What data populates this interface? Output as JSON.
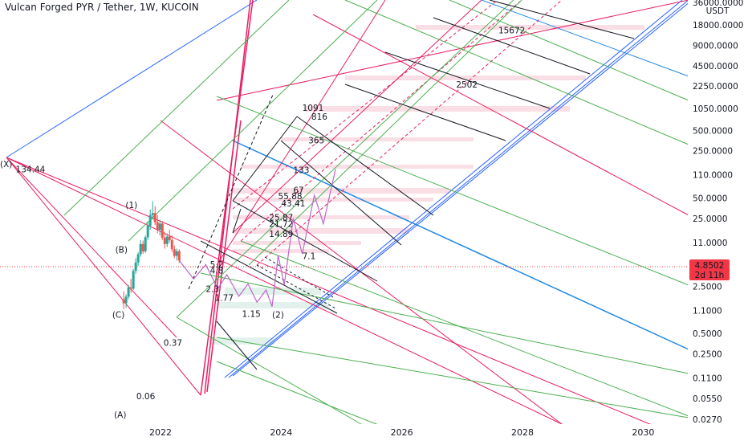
{
  "header": {
    "symbol_title": "Vulcan Forged PYR / Tether, 1W, KUCOIN"
  },
  "price_axis": {
    "currency_label": "USDT",
    "last_price": "4.8502",
    "countdown": "2d 11h",
    "last_price_color": "#f23645"
  },
  "chart_data": {
    "type": "line",
    "title": "Vulcan Forged PYR / Tether, 1W, KUCOIN",
    "xlabel": "",
    "ylabel": "",
    "y_scale": "log",
    "xlim": [
      2019.34,
      2030.74
    ],
    "ylim": [
      0.023,
      42000
    ],
    "grid": false,
    "x_ticks": [
      {
        "value": 2022,
        "label": "2022"
      },
      {
        "value": 2024,
        "label": "2024"
      },
      {
        "value": 2026,
        "label": "2026"
      },
      {
        "value": 2028,
        "label": "2028"
      },
      {
        "value": 2030,
        "label": "2030"
      }
    ],
    "y_ticks": [
      {
        "value": 36000,
        "label": "36000.0000"
      },
      {
        "value": 18000,
        "label": "18000.0000"
      },
      {
        "value": 9000,
        "label": "9000.0000"
      },
      {
        "value": 4500,
        "label": "4500.0000"
      },
      {
        "value": 2250,
        "label": "2250.0000"
      },
      {
        "value": 1050,
        "label": "1050.0000"
      },
      {
        "value": 500,
        "label": "500.0000"
      },
      {
        "value": 250,
        "label": "250.0000"
      },
      {
        "value": 110,
        "label": "110.0000"
      },
      {
        "value": 50,
        "label": "50.0000"
      },
      {
        "value": 25,
        "label": "25.0000"
      },
      {
        "value": 11,
        "label": "11.0000"
      },
      {
        "value": 2.5,
        "label": "2.5000"
      },
      {
        "value": 1.1,
        "label": "1.1000"
      },
      {
        "value": 0.5,
        "label": "0.5000"
      },
      {
        "value": 0.25,
        "label": "0.2500"
      },
      {
        "value": 0.11,
        "label": "0.1100"
      },
      {
        "value": 0.055,
        "label": "0.0550"
      },
      {
        "value": 0.027,
        "label": "0.0270"
      }
    ],
    "last_price": 4.8502,
    "candles": [
      {
        "t": 2021.39,
        "o": 1.6,
        "h": 2.1,
        "l": 1.15,
        "c": 1.4
      },
      {
        "t": 2021.43,
        "o": 1.4,
        "h": 1.9,
        "l": 1.2,
        "c": 1.75
      },
      {
        "t": 2021.47,
        "o": 1.75,
        "h": 2.6,
        "l": 1.6,
        "c": 2.4
      },
      {
        "t": 2021.51,
        "o": 2.4,
        "h": 3.2,
        "l": 2.0,
        "c": 2.3
      },
      {
        "t": 2021.55,
        "o": 2.3,
        "h": 4.5,
        "l": 2.2,
        "c": 4.2
      },
      {
        "t": 2021.59,
        "o": 4.2,
        "h": 6.5,
        "l": 3.8,
        "c": 5.6
      },
      {
        "t": 2021.63,
        "o": 5.6,
        "h": 8.0,
        "l": 5.0,
        "c": 7.4
      },
      {
        "t": 2021.67,
        "o": 7.4,
        "h": 12.0,
        "l": 6.8,
        "c": 10.5
      },
      {
        "t": 2021.71,
        "o": 10.5,
        "h": 11.8,
        "l": 7.5,
        "c": 8.2
      },
      {
        "t": 2021.75,
        "o": 8.2,
        "h": 14.0,
        "l": 7.8,
        "c": 13.2
      },
      {
        "t": 2021.79,
        "o": 13.2,
        "h": 22.0,
        "l": 12.0,
        "c": 19.5
      },
      {
        "t": 2021.83,
        "o": 19.5,
        "h": 34.0,
        "l": 17.0,
        "c": 28.0
      },
      {
        "t": 2021.87,
        "o": 28.0,
        "h": 45.0,
        "l": 24.0,
        "c": 30.0
      },
      {
        "t": 2021.91,
        "o": 30.0,
        "h": 38.0,
        "l": 20.0,
        "c": 22.0
      },
      {
        "t": 2021.95,
        "o": 22.0,
        "h": 28.0,
        "l": 15.0,
        "c": 17.0
      },
      {
        "t": 2021.99,
        "o": 17.0,
        "h": 24.0,
        "l": 14.0,
        "c": 21.0
      },
      {
        "t": 2022.03,
        "o": 21.0,
        "h": 23.0,
        "l": 12.0,
        "c": 13.0
      },
      {
        "t": 2022.07,
        "o": 13.0,
        "h": 16.0,
        "l": 9.0,
        "c": 10.5
      },
      {
        "t": 2022.11,
        "o": 10.5,
        "h": 15.0,
        "l": 9.5,
        "c": 13.5
      },
      {
        "t": 2022.15,
        "o": 13.5,
        "h": 17.0,
        "l": 11.0,
        "c": 12.0
      },
      {
        "t": 2022.19,
        "o": 12.0,
        "h": 14.0,
        "l": 8.0,
        "c": 8.8
      },
      {
        "t": 2022.23,
        "o": 8.8,
        "h": 10.0,
        "l": 6.5,
        "c": 7.0
      },
      {
        "t": 2022.27,
        "o": 7.0,
        "h": 9.0,
        "l": 6.0,
        "c": 8.2
      },
      {
        "t": 2022.31,
        "o": 8.2,
        "h": 8.8,
        "l": 5.5,
        "c": 6.0
      }
    ],
    "projection_path": [
      [
        2022.31,
        6.0
      ],
      [
        2022.55,
        3.2
      ],
      [
        2022.75,
        5.2
      ],
      [
        2022.95,
        2.3
      ],
      [
        2023.1,
        3.7
      ],
      [
        2023.3,
        1.77
      ],
      [
        2023.45,
        2.7
      ],
      [
        2023.6,
        1.45
      ],
      [
        2023.75,
        2.2
      ],
      [
        2023.85,
        1.25
      ],
      [
        2023.95,
        7.1
      ],
      [
        2024.05,
        2.6
      ],
      [
        2024.2,
        25.0
      ],
      [
        2024.35,
        7.5
      ],
      [
        2024.55,
        55.0
      ],
      [
        2024.7,
        21.0
      ],
      [
        2024.9,
        133.0
      ]
    ],
    "series": [],
    "annotations": [
      {
        "text": "(X)",
        "x": 2019.34,
        "y": 160
      },
      {
        "text": "134.44",
        "x": 2019.6,
        "y": 134.44
      },
      {
        "text": "(A)",
        "x": 2021.23,
        "y": 0.032
      },
      {
        "text": "0.06",
        "x": 2021.6,
        "y": 0.06
      },
      {
        "text": "(B)",
        "x": 2021.25,
        "y": 8.7
      },
      {
        "text": "(C)",
        "x": 2021.2,
        "y": 0.96
      },
      {
        "text": "(1)",
        "x": 2021.42,
        "y": 40
      },
      {
        "text": "(2)",
        "x": 2023.85,
        "y": 0.95
      },
      {
        "text": "0.37",
        "x": 2022.05,
        "y": 0.37
      },
      {
        "text": "1.15",
        "x": 2023.35,
        "y": 0.98
      },
      {
        "text": "1.77",
        "x": 2022.9,
        "y": 1.7
      },
      {
        "text": "2.3",
        "x": 2022.75,
        "y": 2.3
      },
      {
        "text": "4.8",
        "x": 2022.82,
        "y": 4.3
      },
      {
        "text": "5.2",
        "x": 2022.82,
        "y": 5.3
      },
      {
        "text": "7.1",
        "x": 2024.35,
        "y": 7.0
      },
      {
        "text": "14.89",
        "x": 2023.8,
        "y": 14.89
      },
      {
        "text": "21.72",
        "x": 2023.8,
        "y": 21.0
      },
      {
        "text": "25.87",
        "x": 2023.8,
        "y": 26.2
      },
      {
        "text": "43.41",
        "x": 2024.0,
        "y": 42.0
      },
      {
        "text": "55.88",
        "x": 2023.95,
        "y": 54.0
      },
      {
        "text": "67",
        "x": 2024.2,
        "y": 66.0
      },
      {
        "text": "133",
        "x": 2024.2,
        "y": 130.0
      },
      {
        "text": "365",
        "x": 2024.45,
        "y": 360.0
      },
      {
        "text": "816",
        "x": 2024.5,
        "y": 800.0
      },
      {
        "text": "1091",
        "x": 2024.35,
        "y": 1080.0
      },
      {
        "text": "2502",
        "x": 2026.9,
        "y": 2400.0
      },
      {
        "text": "15672",
        "x": 2027.6,
        "y": 15000.0
      }
    ]
  }
}
